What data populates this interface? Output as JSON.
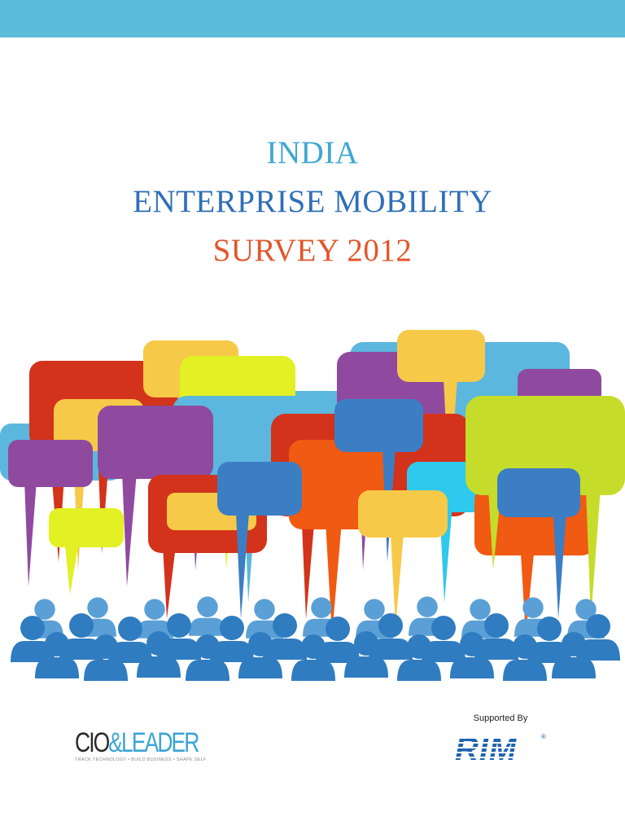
{
  "header": {
    "bar_color": "#5bbcd9"
  },
  "title": {
    "line1": "INDIA",
    "line2": "ENTERPRISE MOBILITY",
    "line3": "SURVEY 2012",
    "colors": {
      "line1": "#3fa7d1",
      "line2": "#2e6fb7",
      "line3": "#e2562c"
    }
  },
  "illustration": {
    "icon": "speech-bubbles-over-crowd-icon",
    "bubble_colors": [
      "#d3321b",
      "#f7c948",
      "#e3f023",
      "#8f4aa0",
      "#3c7ec4",
      "#5bb7de",
      "#f05a12",
      "#c6dc2b",
      "#2ec9ec"
    ],
    "people_color": "#2f7cc0"
  },
  "footer": {
    "cio_logo": {
      "main": "CIO",
      "ampersand": "&",
      "leader": "LEADER",
      "tagline": "TRACK TECHNOLOGY • BUILD BUSINESS • SHAPE SELF"
    },
    "supported_by": "Supported By",
    "sponsor_logo": {
      "text": "RIM",
      "registered": "®"
    }
  }
}
